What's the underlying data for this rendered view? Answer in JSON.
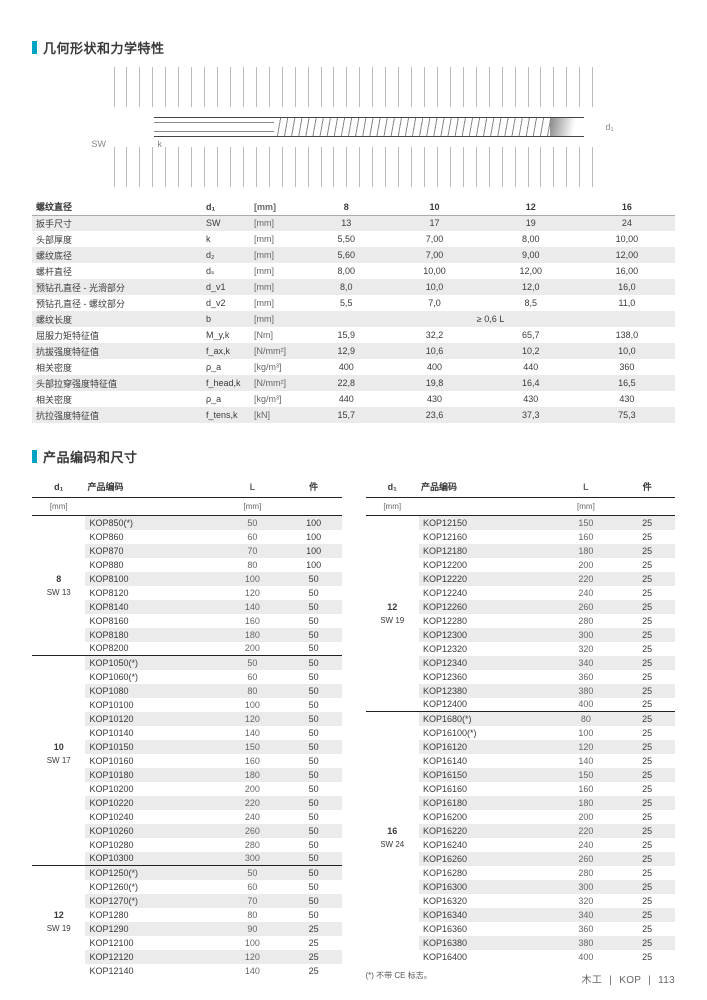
{
  "section1": {
    "title": "几何形状和力学特性"
  },
  "section2": {
    "title": "产品编码和尺寸"
  },
  "diagram": {
    "sw": "SW",
    "k": "k",
    "d1": "d₁"
  },
  "geo": {
    "cols": [
      "8",
      "10",
      "12",
      "16"
    ],
    "rows": [
      {
        "label": "螺纹直径",
        "sym": "d₁",
        "unit": "[mm]",
        "vals": [
          "8",
          "10",
          "12",
          "16"
        ],
        "cls": "head"
      },
      {
        "label": "扳手尺寸",
        "sym": "SW",
        "unit": "[mm]",
        "vals": [
          "13",
          "17",
          "19",
          "24"
        ],
        "cls": "alt"
      },
      {
        "label": "头部厚度",
        "sym": "k",
        "unit": "[mm]",
        "vals": [
          "5,50",
          "7,00",
          "8,00",
          "10,00"
        ],
        "cls": "plain"
      },
      {
        "label": "螺纹底径",
        "sym": "d₂",
        "unit": "[mm]",
        "vals": [
          "5,60",
          "7,00",
          "9,00",
          "12,00"
        ],
        "cls": "alt"
      },
      {
        "label": "螺杆直径",
        "sym": "dₛ",
        "unit": "[mm]",
        "vals": [
          "8,00",
          "10,00",
          "12,00",
          "16,00"
        ],
        "cls": "plain"
      },
      {
        "label": "预钻孔直径 - 光滑部分",
        "sym": "d_v1",
        "unit": "[mm]",
        "vals": [
          "8,0",
          "10,0",
          "12,0",
          "16,0"
        ],
        "cls": "alt"
      },
      {
        "label": "预钻孔直径 - 螺纹部分",
        "sym": "d_v2",
        "unit": "[mm]",
        "vals": [
          "5,5",
          "7,0",
          "8,5",
          "11,0"
        ],
        "cls": "plain"
      },
      {
        "label": "螺纹长度",
        "sym": "b",
        "unit": "[mm]",
        "span": "≥ 0,6 L",
        "cls": "alt"
      },
      {
        "label": "屈服力矩特征值",
        "sym": "M_y,k",
        "unit": "[Nm]",
        "vals": [
          "15,9",
          "32,2",
          "65,7",
          "138,0"
        ],
        "cls": "plain"
      },
      {
        "label": "抗拔强度特征值",
        "sym": "f_ax,k",
        "unit": "[N/mm²]",
        "vals": [
          "12,9",
          "10,6",
          "10,2",
          "10,0"
        ],
        "cls": "alt"
      },
      {
        "label": "相关密度",
        "sym": "ρ_a",
        "unit": "[kg/m³]",
        "vals": [
          "400",
          "400",
          "440",
          "360"
        ],
        "cls": "plain"
      },
      {
        "label": "头部拉穿强度特征值",
        "sym": "f_head,k",
        "unit": "[N/mm²]",
        "vals": [
          "22,8",
          "19,8",
          "16,4",
          "16,5"
        ],
        "cls": "alt"
      },
      {
        "label": "相关密度",
        "sym": "ρ_a",
        "unit": "[kg/m³]",
        "vals": [
          "440",
          "430",
          "430",
          "430"
        ],
        "cls": "plain"
      },
      {
        "label": "抗拉强度特征值",
        "sym": "f_tens,k",
        "unit": "[kN]",
        "vals": [
          "15,7",
          "23,6",
          "37,3",
          "75,3"
        ],
        "cls": "alt"
      }
    ]
  },
  "prod_header": {
    "d1": "d₁",
    "code": "产品编码",
    "L": "L",
    "qty": "件",
    "mm": "[mm]"
  },
  "left_groups": [
    {
      "dia": "8",
      "sw": "SW 13",
      "rows": [
        {
          "code": "KOP850(*)",
          "L": "50",
          "qty": "100"
        },
        {
          "code": "KOP860",
          "L": "60",
          "qty": "100"
        },
        {
          "code": "KOP870",
          "L": "70",
          "qty": "100"
        },
        {
          "code": "KOP880",
          "L": "80",
          "qty": "100"
        },
        {
          "code": "KOP8100",
          "L": "100",
          "qty": "50"
        },
        {
          "code": "KOP8120",
          "L": "120",
          "qty": "50"
        },
        {
          "code": "KOP8140",
          "L": "140",
          "qty": "50"
        },
        {
          "code": "KOP8160",
          "L": "160",
          "qty": "50"
        },
        {
          "code": "KOP8180",
          "L": "180",
          "qty": "50"
        },
        {
          "code": "KOP8200",
          "L": "200",
          "qty": "50"
        }
      ]
    },
    {
      "dia": "10",
      "sw": "SW 17",
      "rows": [
        {
          "code": "KOP1050(*)",
          "L": "50",
          "qty": "50"
        },
        {
          "code": "KOP1060(*)",
          "L": "60",
          "qty": "50"
        },
        {
          "code": "KOP1080",
          "L": "80",
          "qty": "50"
        },
        {
          "code": "KOP10100",
          "L": "100",
          "qty": "50"
        },
        {
          "code": "KOP10120",
          "L": "120",
          "qty": "50"
        },
        {
          "code": "KOP10140",
          "L": "140",
          "qty": "50"
        },
        {
          "code": "KOP10150",
          "L": "150",
          "qty": "50"
        },
        {
          "code": "KOP10160",
          "L": "160",
          "qty": "50"
        },
        {
          "code": "KOP10180",
          "L": "180",
          "qty": "50"
        },
        {
          "code": "KOP10200",
          "L": "200",
          "qty": "50"
        },
        {
          "code": "KOP10220",
          "L": "220",
          "qty": "50"
        },
        {
          "code": "KOP10240",
          "L": "240",
          "qty": "50"
        },
        {
          "code": "KOP10260",
          "L": "260",
          "qty": "50"
        },
        {
          "code": "KOP10280",
          "L": "280",
          "qty": "50"
        },
        {
          "code": "KOP10300",
          "L": "300",
          "qty": "50"
        }
      ]
    },
    {
      "dia": "12",
      "sw": "SW 19",
      "rows": [
        {
          "code": "KOP1250(*)",
          "L": "50",
          "qty": "50"
        },
        {
          "code": "KOP1260(*)",
          "L": "60",
          "qty": "50"
        },
        {
          "code": "KOP1270(*)",
          "L": "70",
          "qty": "50"
        },
        {
          "code": "KOP1280",
          "L": "80",
          "qty": "50"
        },
        {
          "code": "KOP1290",
          "L": "90",
          "qty": "25"
        },
        {
          "code": "KOP12100",
          "L": "100",
          "qty": "25"
        },
        {
          "code": "KOP12120",
          "L": "120",
          "qty": "25"
        },
        {
          "code": "KOP12140",
          "L": "140",
          "qty": "25"
        }
      ]
    }
  ],
  "right_groups": [
    {
      "dia": "12",
      "sw": "SW 19",
      "rows": [
        {
          "code": "KOP12150",
          "L": "150",
          "qty": "25"
        },
        {
          "code": "KOP12160",
          "L": "160",
          "qty": "25"
        },
        {
          "code": "KOP12180",
          "L": "180",
          "qty": "25"
        },
        {
          "code": "KOP12200",
          "L": "200",
          "qty": "25"
        },
        {
          "code": "KOP12220",
          "L": "220",
          "qty": "25"
        },
        {
          "code": "KOP12240",
          "L": "240",
          "qty": "25"
        },
        {
          "code": "KOP12260",
          "L": "260",
          "qty": "25"
        },
        {
          "code": "KOP12280",
          "L": "280",
          "qty": "25"
        },
        {
          "code": "KOP12300",
          "L": "300",
          "qty": "25"
        },
        {
          "code": "KOP12320",
          "L": "320",
          "qty": "25"
        },
        {
          "code": "KOP12340",
          "L": "340",
          "qty": "25"
        },
        {
          "code": "KOP12360",
          "L": "360",
          "qty": "25"
        },
        {
          "code": "KOP12380",
          "L": "380",
          "qty": "25"
        },
        {
          "code": "KOP12400",
          "L": "400",
          "qty": "25"
        }
      ]
    },
    {
      "dia": "16",
      "sw": "SW 24",
      "rows": [
        {
          "code": "KOP1680(*)",
          "L": "80",
          "qty": "25"
        },
        {
          "code": "KOP16100(*)",
          "L": "100",
          "qty": "25"
        },
        {
          "code": "KOP16120",
          "L": "120",
          "qty": "25"
        },
        {
          "code": "KOP16140",
          "L": "140",
          "qty": "25"
        },
        {
          "code": "KOP16150",
          "L": "150",
          "qty": "25"
        },
        {
          "code": "KOP16160",
          "L": "160",
          "qty": "25"
        },
        {
          "code": "KOP16180",
          "L": "180",
          "qty": "25"
        },
        {
          "code": "KOP16200",
          "L": "200",
          "qty": "25"
        },
        {
          "code": "KOP16220",
          "L": "220",
          "qty": "25"
        },
        {
          "code": "KOP16240",
          "L": "240",
          "qty": "25"
        },
        {
          "code": "KOP16260",
          "L": "260",
          "qty": "25"
        },
        {
          "code": "KOP16280",
          "L": "280",
          "qty": "25"
        },
        {
          "code": "KOP16300",
          "L": "300",
          "qty": "25"
        },
        {
          "code": "KOP16320",
          "L": "320",
          "qty": "25"
        },
        {
          "code": "KOP16340",
          "L": "340",
          "qty": "25"
        },
        {
          "code": "KOP16360",
          "L": "360",
          "qty": "25"
        },
        {
          "code": "KOP16380",
          "L": "380",
          "qty": "25"
        },
        {
          "code": "KOP16400",
          "L": "400",
          "qty": "25"
        }
      ]
    }
  ],
  "footnote": "(*) 不带 CE 标志。",
  "footer": {
    "cat": "木工",
    "prod": "KOP",
    "page": "113"
  }
}
